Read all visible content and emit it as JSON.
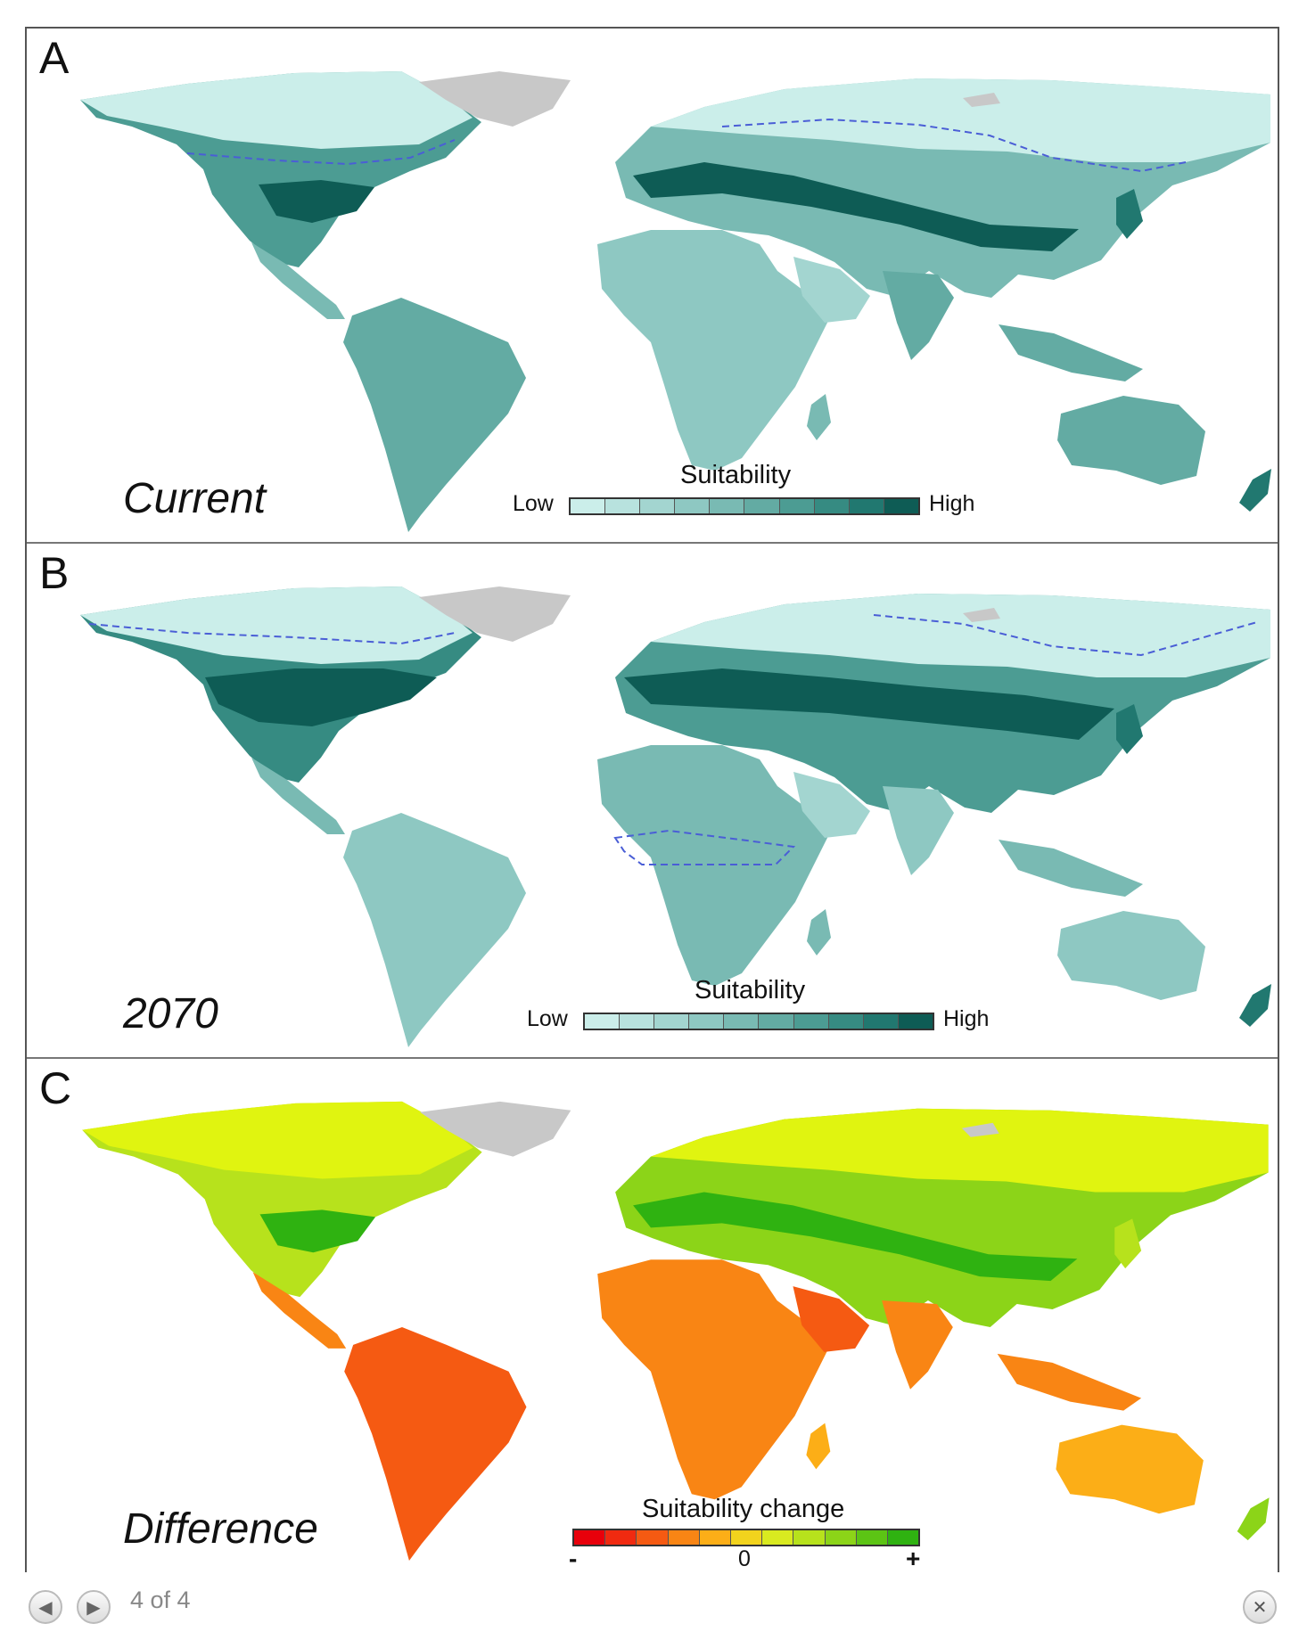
{
  "panels": [
    {
      "letter": "A",
      "caption": "Current",
      "legend": {
        "title": "Suitability",
        "low_label": "Low",
        "high_label": "High",
        "colors": [
          "#cbeeea",
          "#b8e2de",
          "#a3d5d0",
          "#8ec8c2",
          "#79bab3",
          "#63aba3",
          "#4c9c93",
          "#368b82",
          "#217870",
          "#0e5c55"
        ]
      }
    },
    {
      "letter": "B",
      "caption": "2070",
      "legend": {
        "title": "Suitability",
        "low_label": "Low",
        "high_label": "High",
        "colors": [
          "#cbeeea",
          "#b8e2de",
          "#a3d5d0",
          "#8ec8c2",
          "#79bab3",
          "#63aba3",
          "#4c9c93",
          "#368b82",
          "#217870",
          "#0e5c55"
        ]
      }
    },
    {
      "letter": "C",
      "caption": "Difference",
      "legend": {
        "title": "Suitability change",
        "minus_label": "-",
        "zero_label": "0",
        "plus_label": "+",
        "colors": [
          "#e8000b",
          "#f02a10",
          "#f55a12",
          "#f98514",
          "#fcae17",
          "#f2d31d",
          "#d9ea20",
          "#b7e21c",
          "#8cd418",
          "#5cc414",
          "#2fb211"
        ]
      }
    }
  ],
  "colors": {
    "ice": "#c8c8c8",
    "ocean": "#ffffff",
    "boundary": "#4a5ed6"
  },
  "nav": {
    "prev_icon": "arrow-left-icon",
    "next_icon": "arrow-right-icon",
    "close_icon": "close-icon",
    "page_counter": "4 of 4"
  }
}
